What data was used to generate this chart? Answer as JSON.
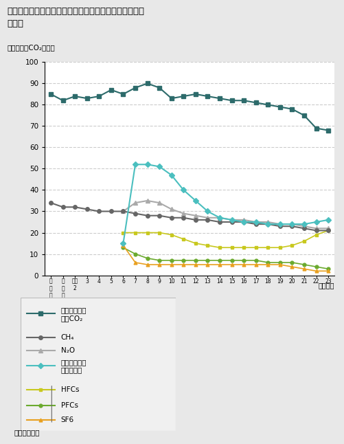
{
  "title": "各種温室効果ガス（エネルギー起源二酸化炭素以外）の\n排出量",
  "ylabel": "（百万トンCO₂換算）",
  "xlabel_note": "（年度）",
  "source": "資料：環境省",
  "ylim": [
    0,
    100
  ],
  "yticks": [
    0,
    10,
    20,
    30,
    40,
    50,
    60,
    70,
    80,
    90,
    100
  ],
  "series": {
    "non_energy_co2": {
      "label": "非エネルギー\n起源CO₂",
      "color": "#2d6b6b",
      "marker": "s",
      "markersize": 4,
      "linewidth": 1.5,
      "values": [
        85,
        82,
        84,
        83,
        84,
        87,
        85,
        88,
        90,
        88,
        83,
        84,
        85,
        84,
        83,
        82,
        82,
        81,
        80,
        79,
        78,
        75,
        69,
        68
      ]
    },
    "ch4": {
      "label": "CH₄",
      "color": "#666666",
      "marker": "o",
      "markersize": 4,
      "linewidth": 1.5,
      "values": [
        34,
        32,
        32,
        31,
        30,
        30,
        30,
        29,
        28,
        28,
        27,
        27,
        26,
        26,
        25,
        25,
        25,
        24,
        24,
        23,
        23,
        22,
        21,
        21
      ]
    },
    "n2o": {
      "label": "N₂O",
      "color": "#aaaaaa",
      "marker": "^",
      "markersize": 4,
      "linewidth": 1.5,
      "values": [
        null,
        null,
        null,
        null,
        null,
        null,
        30,
        34,
        35,
        34,
        31,
        29,
        28,
        27,
        27,
        26,
        26,
        25,
        25,
        24,
        24,
        23,
        22,
        22
      ]
    },
    "hfc_pfc_sf6_total": {
      "label": "代替フロン等\n３ガス合計",
      "color": "#4bbfbf",
      "marker": "D",
      "markersize": 4,
      "linewidth": 1.5,
      "values": [
        null,
        null,
        null,
        null,
        null,
        null,
        15,
        52,
        52,
        51,
        47,
        40,
        35,
        30,
        27,
        26,
        25,
        25,
        24,
        24,
        24,
        24,
        25,
        26
      ]
    },
    "hfcs": {
      "label": "HFCs",
      "color": "#c8c81e",
      "marker": "s",
      "markersize": 3.5,
      "linewidth": 1.2,
      "values": [
        null,
        null,
        null,
        null,
        null,
        null,
        20,
        20,
        20,
        20,
        19,
        17,
        15,
        14,
        13,
        13,
        13,
        13,
        13,
        13,
        14,
        16,
        19,
        21
      ]
    },
    "pfcs": {
      "label": "PFCs",
      "color": "#6baa2e",
      "marker": "o",
      "markersize": 3.5,
      "linewidth": 1.2,
      "values": [
        null,
        null,
        null,
        null,
        null,
        null,
        13,
        10,
        8,
        7,
        7,
        7,
        7,
        7,
        7,
        7,
        7,
        7,
        6,
        6,
        6,
        5,
        4,
        3
      ]
    },
    "sf6": {
      "label": "SF6",
      "color": "#e8a020",
      "marker": "^",
      "markersize": 3.5,
      "linewidth": 1.2,
      "values": [
        null,
        null,
        null,
        null,
        null,
        null,
        14,
        6,
        5,
        5,
        5,
        5,
        5,
        5,
        5,
        5,
        5,
        5,
        5,
        5,
        4,
        3,
        2,
        2
      ]
    }
  },
  "background_color": "#e8e8e8",
  "plot_bg_color": "#ffffff",
  "legend_bg_color": "#f0f0f0"
}
